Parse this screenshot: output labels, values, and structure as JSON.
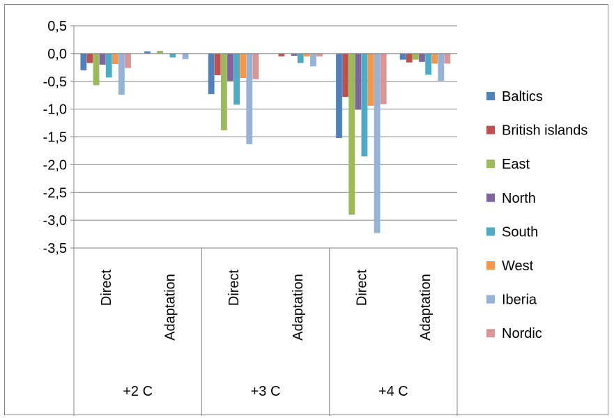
{
  "chart_data": {
    "type": "bar",
    "ylim": [
      -3.5,
      0.5
    ],
    "ytick_step": 0.5,
    "yticks": [
      "0,5",
      "0,0",
      "-0,5",
      "-1,0",
      "-1,5",
      "-2,0",
      "-2,5",
      "-3,0",
      "-3,5"
    ],
    "grid": true,
    "legend_position": "right",
    "groups": [
      "+2 C",
      "+3 C",
      "+4 C"
    ],
    "subcategories": [
      "Direct",
      "Adaptation"
    ],
    "categories": [
      "+2 C Direct",
      "+2 C Adaptation",
      "+3 C Direct",
      "+3 C Adaptation",
      "+4 C Direct",
      "+4 C Adaptation"
    ],
    "series": [
      {
        "name": "Baltics",
        "color": "#4F81BD",
        "values": [
          -0.3,
          0.04,
          -0.73,
          0.0,
          -1.52,
          -0.11
        ]
      },
      {
        "name": "British islands",
        "color": "#C0504D",
        "values": [
          -0.17,
          0.0,
          -0.39,
          -0.05,
          -0.78,
          -0.16
        ]
      },
      {
        "name": "East",
        "color": "#9BBB59",
        "values": [
          -0.57,
          0.05,
          -1.38,
          0.0,
          -2.9,
          -0.11
        ]
      },
      {
        "name": "North",
        "color": "#8064A2",
        "values": [
          -0.2,
          0.0,
          -0.49,
          -0.04,
          -1.01,
          -0.15
        ]
      },
      {
        "name": "South",
        "color": "#4BACC6",
        "values": [
          -0.43,
          -0.07,
          -0.92,
          -0.17,
          -1.85,
          -0.38
        ]
      },
      {
        "name": "West",
        "color": "#F79646",
        "values": [
          -0.19,
          0.0,
          -0.44,
          -0.05,
          -0.94,
          -0.18
        ]
      },
      {
        "name": "Iberia",
        "color": "#95B3D7",
        "values": [
          -0.74,
          -0.1,
          -1.63,
          -0.23,
          -3.23,
          -0.49
        ]
      },
      {
        "name": "Nordic",
        "color": "#D99694",
        "values": [
          -0.26,
          0.0,
          -0.46,
          -0.05,
          -0.91,
          -0.18
        ]
      }
    ]
  }
}
